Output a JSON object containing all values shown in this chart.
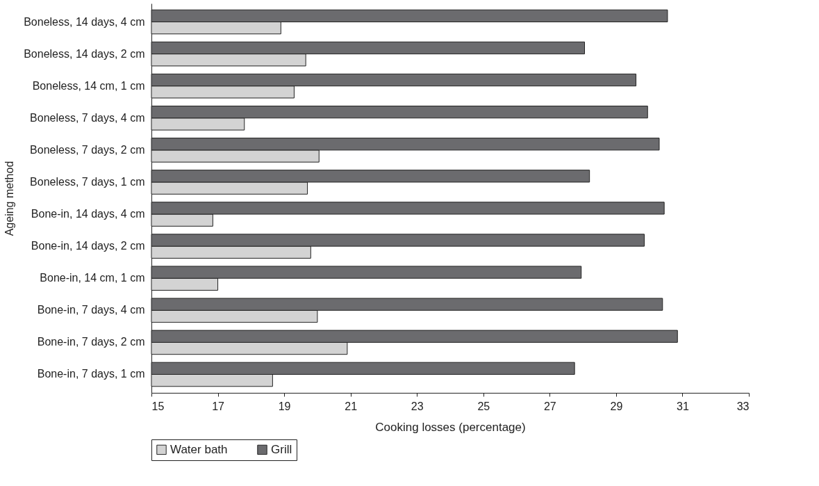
{
  "chart_data": {
    "type": "bar",
    "orientation": "horizontal",
    "xlabel": "Cooking losses (percentage)",
    "ylabel": "Ageing method",
    "categories": [
      "Boneless, 14 days, 4 cm",
      "Boneless, 14 days, 2 cm",
      "Boneless, 14 cm, 1 cm",
      "Boneless, 7 days, 4 cm",
      "Boneless, 7 days, 2 cm",
      "Boneless, 7 days, 1 cm",
      "Bone-in, 14 days, 4 cm",
      "Bone-in, 14 days, 2 cm",
      "Bone-in, 14 cm, 1 cm",
      "Bone-in, 7 days, 4 cm",
      "Bone-in, 7 days, 2 cm",
      "Bone-in, 7 days, 1 cm"
    ],
    "series": [
      {
        "name": "Water bath",
        "color": "#d3d3d3",
        "values": [
          18.9,
          19.65,
          19.3,
          17.8,
          20.05,
          19.7,
          16.85,
          19.8,
          17.0,
          20.0,
          20.9,
          18.65
        ]
      },
      {
        "name": "Grill",
        "color": "#6b6b6e",
        "values": [
          30.55,
          28.05,
          29.6,
          29.95,
          30.3,
          28.2,
          30.45,
          29.85,
          27.95,
          30.4,
          30.85,
          27.75
        ]
      }
    ],
    "xlim": [
      15,
      33
    ],
    "xticks": [
      15,
      17,
      19,
      21,
      23,
      25,
      27,
      29,
      31,
      33
    ],
    "grid": false,
    "legend": "bottom"
  }
}
